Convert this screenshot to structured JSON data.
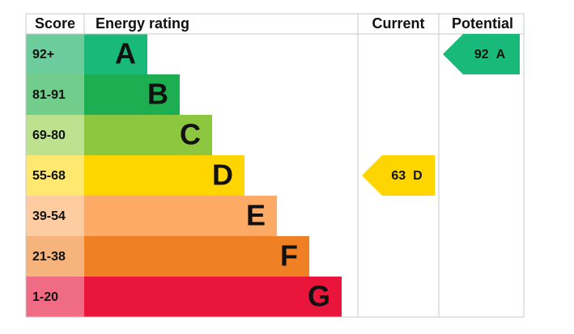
{
  "header": {
    "score": "Score",
    "rating": "Energy rating",
    "current": "Current",
    "potential": "Potential"
  },
  "bands": [
    {
      "score": "92+",
      "letter": "A",
      "color": "#19b97a",
      "score_color": "#6ccc9c"
    },
    {
      "score": "81-91",
      "letter": "B",
      "color": "#1cae50",
      "score_color": "#72cc8c"
    },
    {
      "score": "69-80",
      "letter": "C",
      "color": "#8dc63f",
      "score_color": "#bde28f"
    },
    {
      "score": "55-68",
      "letter": "D",
      "color": "#ffd500",
      "score_color": "#ffe870"
    },
    {
      "score": "39-54",
      "letter": "E",
      "color": "#fcaa65",
      "score_color": "#fdcca0"
    },
    {
      "score": "21-38",
      "letter": "F",
      "color": "#ef8023",
      "score_color": "#f6b37c"
    },
    {
      "score": "1-20",
      "letter": "G",
      "color": "#e9153b",
      "score_color": "#f06c84"
    }
  ],
  "current": {
    "value": 63,
    "letter": "D",
    "color": "#ffd500"
  },
  "potential": {
    "value": 92,
    "letter": "A",
    "color": "#19b97a"
  }
}
